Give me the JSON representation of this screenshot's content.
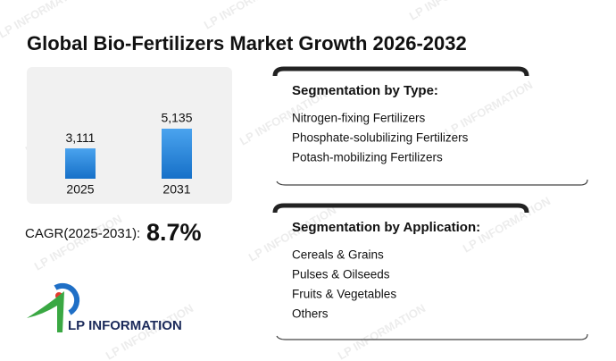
{
  "watermark": "LP INFORMATION",
  "header": {
    "title": "Global Bio-Fertilizers Market Growth 2026-2032"
  },
  "chart_data": {
    "type": "bar",
    "categories": [
      "2025",
      "2031"
    ],
    "values": [
      3111,
      5135
    ],
    "value_labels": [
      "3,111",
      "5,135"
    ],
    "color": "#1f7fd6"
  },
  "cagr": {
    "label": "CAGR(2025-2031):",
    "value": "8.7%"
  },
  "segments": [
    {
      "title": "Segmentation by Type:",
      "items": [
        "Nitrogen-fixing Fertilizers",
        "Phosphate-solubilizing Fertilizers",
        "Potash-mobilizing Fertilizers"
      ]
    },
    {
      "title": "Segmentation by Application:",
      "items": [
        "Cereals & Grains",
        "Pulses & Oilseeds",
        "Fruits & Vegetables",
        "Others"
      ]
    }
  ],
  "logo": {
    "text": "LP INFORMATION"
  }
}
